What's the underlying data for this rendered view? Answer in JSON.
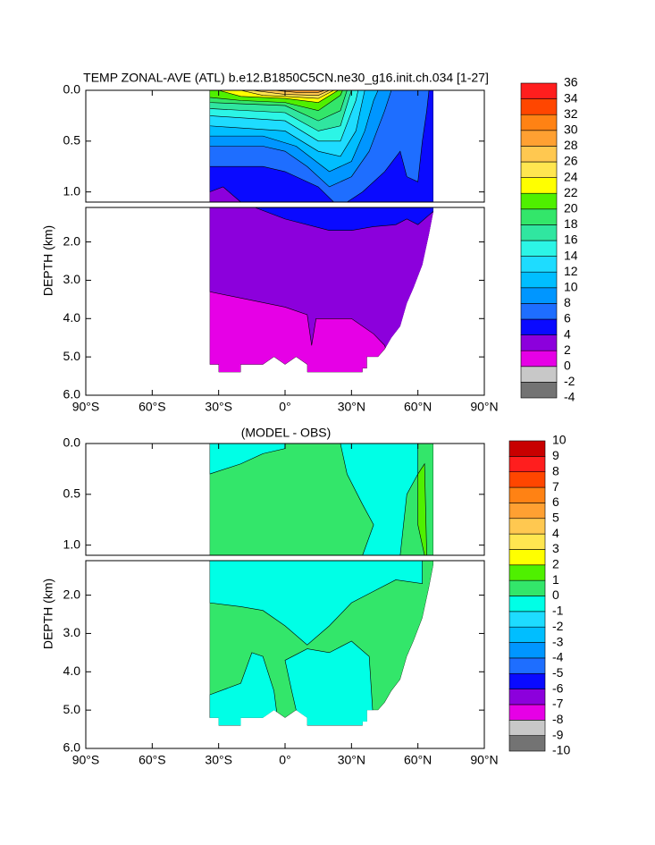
{
  "chart_data": [
    {
      "type": "contour",
      "title": "TEMP ZONAL-AVE (ATL) b.e12.B1850C5CN.ne30_g16.init.ch.034 [1-27]",
      "y_label": "DEPTH (km)",
      "xlim": [
        -90,
        90
      ],
      "xticks": [
        {
          "value": -90,
          "label": "90°S"
        },
        {
          "value": -60,
          "label": "60°S"
        },
        {
          "value": -30,
          "label": "30°S"
        },
        {
          "value": 0,
          "label": "0°"
        },
        {
          "value": 30,
          "label": "30°N"
        },
        {
          "value": 60,
          "label": "60°N"
        },
        {
          "value": 90,
          "label": "90°N"
        }
      ],
      "ylim": [
        0,
        6
      ],
      "y_break": 1.1,
      "yticks": [
        {
          "value": 0,
          "label": "0.0"
        },
        {
          "value": 0.5,
          "label": "0.5"
        },
        {
          "value": 1,
          "label": "1.0"
        },
        {
          "value": 2,
          "label": "2.0"
        },
        {
          "value": 3,
          "label": "3.0"
        },
        {
          "value": 4,
          "label": "4.0"
        },
        {
          "value": 5,
          "label": "5.0"
        },
        {
          "value": 6,
          "label": "6.0"
        }
      ],
      "levels": [
        -4,
        -2,
        0,
        2,
        4,
        6,
        8,
        10,
        12,
        14,
        16,
        18,
        20,
        22,
        24,
        26,
        28,
        30,
        32,
        34,
        36
      ],
      "colors": [
        "#737373",
        "#c8c8c8",
        "#e600e6",
        "#8c00dc",
        "#0a0aff",
        "#1e6eff",
        "#0096ff",
        "#00beff",
        "#1edcff",
        "#2cf5e6",
        "#30e6a0",
        "#33e66a",
        "#4ff000",
        "#ffff00",
        "#ffe650",
        "#ffc850",
        "#ffa032",
        "#ff8214",
        "#ff4600",
        "#ff1e1e",
        "#c80000"
      ]
    },
    {
      "type": "contour",
      "title": "(MODEL - OBS)",
      "y_label": "DEPTH (km)",
      "xlim": [
        -90,
        90
      ],
      "xticks": [
        {
          "value": -90,
          "label": "90°S"
        },
        {
          "value": -60,
          "label": "60°S"
        },
        {
          "value": -30,
          "label": "30°S"
        },
        {
          "value": 0,
          "label": "0°"
        },
        {
          "value": 30,
          "label": "30°N"
        },
        {
          "value": 60,
          "label": "60°N"
        },
        {
          "value": 90,
          "label": "90°N"
        }
      ],
      "ylim": [
        0,
        6
      ],
      "y_break": 1.1,
      "yticks": [
        {
          "value": 0,
          "label": "0.0"
        },
        {
          "value": 0.5,
          "label": "0.5"
        },
        {
          "value": 1,
          "label": "1.0"
        },
        {
          "value": 2,
          "label": "2.0"
        },
        {
          "value": 3,
          "label": "3.0"
        },
        {
          "value": 4,
          "label": "4.0"
        },
        {
          "value": 5,
          "label": "5.0"
        },
        {
          "value": 6,
          "label": "6.0"
        }
      ],
      "levels": [
        -10,
        -9,
        -8,
        -7,
        -6,
        -5,
        -4,
        -3,
        -2,
        -1,
        0,
        1,
        2,
        3,
        4,
        5,
        6,
        7,
        8,
        9,
        10
      ],
      "colors": [
        "#737373",
        "#c8c8c8",
        "#e600e6",
        "#8c00dc",
        "#0a0aff",
        "#1e6eff",
        "#0096ff",
        "#00beff",
        "#1edcff",
        "#00ffe6",
        "#33e66a",
        "#4ff000",
        "#ffff00",
        "#ffe650",
        "#ffc850",
        "#ffa032",
        "#ff8214",
        "#ff4600",
        "#ff1e1e",
        "#c80000"
      ]
    }
  ]
}
